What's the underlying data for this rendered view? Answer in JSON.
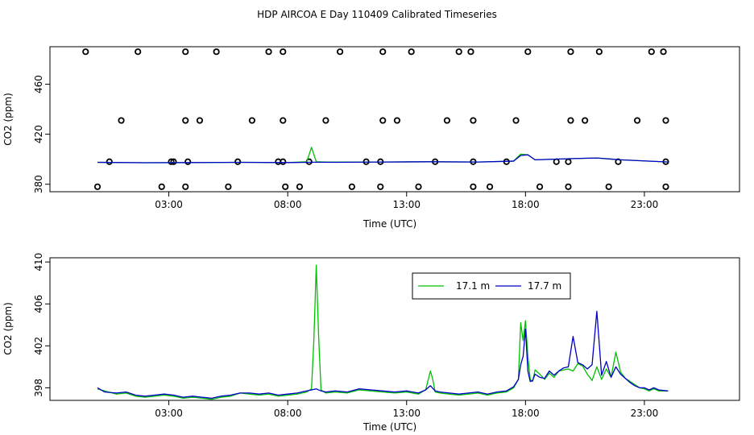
{
  "title": "HDP AIRCOA E  Day 110409  Calibrated Timeseries",
  "colors": {
    "s1": "#00c000",
    "s2": "#0000c8"
  },
  "chart_data": [
    {
      "type": "scatter",
      "xlabel": "Time (UTC)",
      "ylabel": "CO2 (ppm)",
      "xlim": [
        -2,
        27
      ],
      "ylim": [
        374,
        490
      ],
      "x_ticks": [
        3,
        8,
        13,
        18,
        23
      ],
      "x_tick_labels": [
        "03:00",
        "08:00",
        "13:00",
        "18:00",
        "23:00"
      ],
      "y_ticks": [
        380,
        420,
        460
      ],
      "y_tick_labels": [
        "380",
        "420",
        "460"
      ],
      "grid": false,
      "points": {
        "x": [
          -0.5,
          1.7,
          3.7,
          5.0,
          7.2,
          7.8,
          10.2,
          12.0,
          13.2,
          15.2,
          15.7,
          18.1,
          19.9,
          21.1,
          23.3,
          23.8,
          1.0,
          3.7,
          4.3,
          6.5,
          7.8,
          9.6,
          12.0,
          12.6,
          14.7,
          15.8,
          17.6,
          19.9,
          20.5,
          22.7,
          23.9,
          0.5,
          3.8,
          7.6,
          8.9,
          11.3,
          11.9,
          14.2,
          15.8,
          17.2,
          19.3,
          19.8,
          21.9,
          23.9,
          3.2,
          3.1,
          5.9,
          7.8,
          0.0,
          2.7,
          3.7,
          5.5,
          7.9,
          8.5,
          10.7,
          11.9,
          13.5,
          15.8,
          16.5,
          18.6,
          19.8,
          21.5,
          23.9
        ],
        "y": [
          486,
          486,
          486,
          486,
          486,
          486,
          486,
          486,
          486,
          486,
          486,
          486,
          486,
          486,
          486,
          486,
          431,
          431,
          431,
          431,
          431,
          431,
          431,
          431,
          431,
          431,
          431,
          431,
          431,
          431,
          431,
          398,
          398,
          398,
          398,
          398,
          398,
          398,
          398,
          398,
          398,
          398,
          398,
          398,
          398,
          398,
          398,
          398,
          378,
          378,
          378,
          378,
          378,
          378,
          378,
          378,
          378,
          378,
          378,
          378,
          378,
          378,
          378
        ]
      },
      "series": [
        {
          "x": [
            0,
            2,
            4,
            6,
            8,
            8.8,
            9.0,
            9.2,
            9.6,
            12,
            14,
            16,
            17.5,
            17.8,
            18.1,
            18.4,
            20,
            21,
            22,
            24
          ],
          "y": [
            397.5,
            397.2,
            397.3,
            397.5,
            397.3,
            398,
            409.5,
            398,
            397.8,
            397.8,
            398,
            397.8,
            398.5,
            404,
            403.5,
            399.5,
            400.5,
            401,
            399.5,
            397.8
          ]
        },
        {
          "x": [
            0,
            2,
            4,
            6,
            8,
            9,
            10,
            12,
            14,
            16,
            17.5,
            17.8,
            18.1,
            18.4,
            20,
            21,
            22,
            24
          ],
          "y": [
            397.5,
            397.2,
            397.3,
            397.5,
            397.3,
            397.6,
            397.5,
            397.8,
            398,
            397.8,
            398.5,
            403,
            403.5,
            399.5,
            400.5,
            401,
            399.5,
            397.8
          ]
        }
      ]
    },
    {
      "type": "line",
      "xlabel": "Time (UTC)",
      "ylabel": "CO2 (ppm)",
      "xlim": [
        -2,
        27
      ],
      "ylim": [
        396.8,
        410.4
      ],
      "x_ticks": [
        3,
        8,
        13,
        18,
        23
      ],
      "x_tick_labels": [
        "03:00",
        "08:00",
        "13:00",
        "18:00",
        "23:00"
      ],
      "y_ticks": [
        398,
        402,
        406,
        410
      ],
      "y_tick_labels": [
        "398",
        "402",
        "406",
        "410"
      ],
      "grid": false,
      "legend": "top-center",
      "series": [
        {
          "name": "17.1 m",
          "x": [
            0,
            0.3,
            0.8,
            1.2,
            1.6,
            2.0,
            2.4,
            2.8,
            3.2,
            3.6,
            4.0,
            4.4,
            4.8,
            5.2,
            5.6,
            6.0,
            6.4,
            6.8,
            7.2,
            7.6,
            8.0,
            8.4,
            8.8,
            9.0,
            9.1,
            9.2,
            9.3,
            9.4,
            9.6,
            10.0,
            10.5,
            11.0,
            11.5,
            12.0,
            12.5,
            13.0,
            13.5,
            13.8,
            14.0,
            14.1,
            14.2,
            14.4,
            14.8,
            15.2,
            15.6,
            16.0,
            16.4,
            16.8,
            17.2,
            17.5,
            17.7,
            17.8,
            17.9,
            18.0,
            18.1,
            18.2,
            18.3,
            18.4,
            18.6,
            18.8,
            19.0,
            19.2,
            19.4,
            19.6,
            19.8,
            20.0,
            20.2,
            20.4,
            20.6,
            20.8,
            21.0,
            21.2,
            21.4,
            21.6,
            21.8,
            22.0,
            22.2,
            22.4,
            22.6,
            22.8,
            23.0,
            23.2,
            23.4,
            23.6,
            24.0
          ],
          "y": [
            397.9,
            397.7,
            397.4,
            397.5,
            397.2,
            397.1,
            397.2,
            397.3,
            397.2,
            397.0,
            397.1,
            397.0,
            396.9,
            397.1,
            397.2,
            397.5,
            397.4,
            397.3,
            397.4,
            397.2,
            397.3,
            397.4,
            397.6,
            397.9,
            402.5,
            409.7,
            403.0,
            397.8,
            397.5,
            397.6,
            397.5,
            397.8,
            397.7,
            397.6,
            397.5,
            397.6,
            397.4,
            397.8,
            399.6,
            398.8,
            397.6,
            397.5,
            397.4,
            397.3,
            397.4,
            397.5,
            397.3,
            397.5,
            397.6,
            398.0,
            398.8,
            404.2,
            402.5,
            404.4,
            401.0,
            398.8,
            398.6,
            399.7,
            399.3,
            398.8,
            399.4,
            399.0,
            399.6,
            399.7,
            399.8,
            399.6,
            400.3,
            400.1,
            399.3,
            398.7,
            400.0,
            398.8,
            399.8,
            399.0,
            401.4,
            399.5,
            398.9,
            398.6,
            398.3,
            398.0,
            397.9,
            397.7,
            397.9,
            397.7,
            397.7
          ]
        },
        {
          "name": "17.7 m",
          "x": [
            0,
            0.3,
            0.8,
            1.2,
            1.6,
            2.0,
            2.4,
            2.8,
            3.2,
            3.6,
            4.0,
            4.4,
            4.8,
            5.2,
            5.6,
            6.0,
            6.4,
            6.8,
            7.2,
            7.6,
            8.0,
            8.4,
            8.8,
            9.0,
            9.2,
            9.4,
            9.6,
            10.0,
            10.5,
            11.0,
            11.5,
            12.0,
            12.5,
            13.0,
            13.5,
            13.8,
            14.0,
            14.2,
            14.4,
            14.8,
            15.2,
            15.6,
            16.0,
            16.4,
            16.8,
            17.2,
            17.5,
            17.7,
            17.8,
            17.9,
            18.0,
            18.1,
            18.2,
            18.3,
            18.4,
            18.6,
            18.8,
            19.0,
            19.2,
            19.4,
            19.6,
            19.8,
            20.0,
            20.2,
            20.4,
            20.6,
            20.8,
            21.0,
            21.2,
            21.4,
            21.6,
            21.8,
            22.0,
            22.2,
            22.4,
            22.6,
            22.8,
            23.0,
            23.2,
            23.4,
            23.6,
            24.0
          ],
          "y": [
            398.0,
            397.6,
            397.5,
            397.6,
            397.3,
            397.2,
            397.3,
            397.4,
            397.3,
            397.1,
            397.2,
            397.1,
            397.0,
            397.2,
            397.3,
            397.5,
            397.5,
            397.4,
            397.5,
            397.3,
            397.4,
            397.5,
            397.7,
            397.8,
            397.9,
            397.7,
            397.6,
            397.7,
            397.6,
            397.9,
            397.8,
            397.7,
            397.6,
            397.7,
            397.5,
            397.8,
            398.2,
            397.7,
            397.6,
            397.5,
            397.4,
            397.5,
            397.6,
            397.4,
            397.6,
            397.7,
            398.1,
            398.8,
            400.2,
            401.0,
            403.6,
            399.6,
            398.6,
            398.7,
            399.3,
            399.0,
            398.9,
            399.6,
            399.2,
            399.6,
            399.9,
            400.0,
            402.9,
            400.4,
            400.2,
            399.8,
            400.2,
            405.3,
            399.2,
            400.5,
            399.0,
            400.0,
            399.3,
            398.9,
            398.5,
            398.2,
            398.0,
            398.0,
            397.8,
            398.0,
            397.8,
            397.7
          ]
        }
      ]
    }
  ]
}
